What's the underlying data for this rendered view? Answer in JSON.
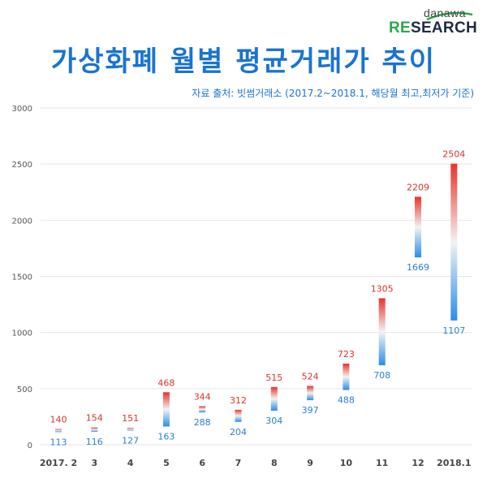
{
  "logo": {
    "top": "danawa",
    "bottom_accent": "RE",
    "bottom_rest": "SEARCH"
  },
  "title": "가상화폐 월별 평균거래가 추이",
  "subtitle": "자료 출처: 빗썸거래소 (2017.2~2018.1,  해당월 최고,최저가 기준)",
  "colors": {
    "title": "#1a74cf",
    "high": "#e8332a",
    "low": "#2a8ee8",
    "grid": "#e6e6e6"
  },
  "chart_data": {
    "type": "bar",
    "subtype": "floating-range",
    "categories": [
      "2017. 2",
      "3",
      "4",
      "5",
      "6",
      "7",
      "8",
      "9",
      "10",
      "11",
      "12",
      "2018.1"
    ],
    "series": [
      {
        "values_low": [
          113,
          116,
          127,
          163,
          288,
          204,
          304,
          397,
          488,
          708,
          1669,
          1107
        ],
        "values_high": [
          140,
          154,
          151,
          468,
          344,
          312,
          515,
          524,
          723,
          1305,
          2209,
          2504
        ]
      }
    ],
    "yticks": [
      0,
      500,
      1000,
      1500,
      2000,
      2500,
      3000
    ],
    "ylim": [
      0,
      3000
    ],
    "grid": true
  }
}
